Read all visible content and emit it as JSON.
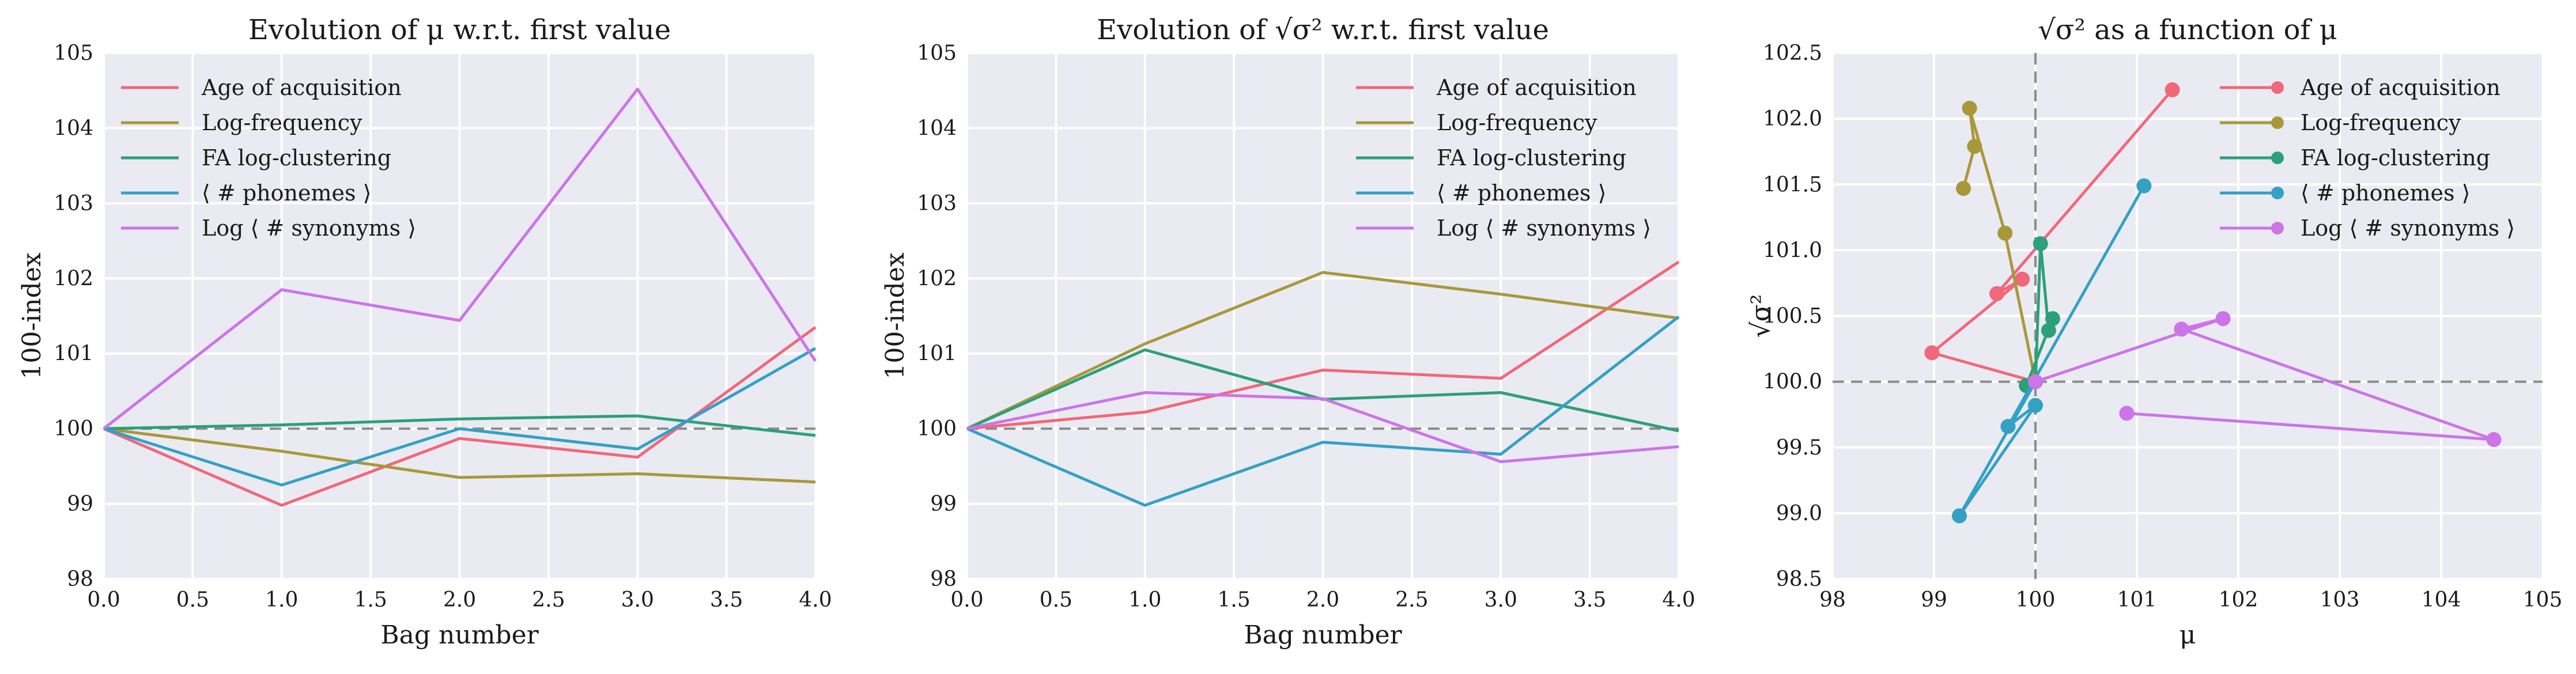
{
  "chart_data": [
    {
      "type": "line",
      "title": "Evolution of μ w.r.t. first value",
      "xlabel": "Bag number",
      "ylabel": "100-index",
      "xlim": [
        0,
        4
      ],
      "ylim": [
        98,
        105
      ],
      "xticks": [
        "0.0",
        "0.5",
        "1.0",
        "1.5",
        "2.0",
        "2.5",
        "3.0",
        "3.5",
        "4.0"
      ],
      "yticks": [
        "98",
        "99",
        "100",
        "101",
        "102",
        "103",
        "104",
        "105"
      ],
      "grid": true,
      "legend_position": "top-left",
      "reference_line": {
        "axis": "y",
        "value": 100
      },
      "x": [
        0,
        1,
        2,
        3,
        4
      ],
      "series": [
        {
          "name": "Age of acquisition",
          "color": "#f0687a",
          "values": [
            100,
            98.98,
            99.87,
            99.62,
            101.35
          ]
        },
        {
          "name": "Log-frequency",
          "color": "#a8983a",
          "values": [
            100,
            99.7,
            99.35,
            99.4,
            99.29
          ]
        },
        {
          "name": "FA log-clustering",
          "color": "#2ca07a",
          "values": [
            100,
            100.05,
            100.13,
            100.17,
            99.91
          ]
        },
        {
          "name": "⟨ # phonemes ⟩",
          "color": "#32a1c4",
          "values": [
            100,
            99.25,
            100.0,
            99.73,
            101.07
          ]
        },
        {
          "name": "Log ⟨ # synonyms ⟩",
          "color": "#cc74e8",
          "values": [
            100,
            101.85,
            101.44,
            104.52,
            100.9
          ]
        }
      ]
    },
    {
      "type": "line",
      "title": "Evolution of √σ² w.r.t. first value",
      "xlabel": "Bag number",
      "ylabel": "100-index",
      "xlim": [
        0,
        4
      ],
      "ylim": [
        98,
        105
      ],
      "xticks": [
        "0.0",
        "0.5",
        "1.0",
        "1.5",
        "2.0",
        "2.5",
        "3.0",
        "3.5",
        "4.0"
      ],
      "yticks": [
        "98",
        "99",
        "100",
        "101",
        "102",
        "103",
        "104",
        "105"
      ],
      "grid": true,
      "legend_position": "top-right",
      "reference_line": {
        "axis": "y",
        "value": 100
      },
      "x": [
        0,
        1,
        2,
        3,
        4
      ],
      "series": [
        {
          "name": "Age of acquisition",
          "color": "#f0687a",
          "values": [
            100,
            100.22,
            100.78,
            100.67,
            102.22
          ]
        },
        {
          "name": "Log-frequency",
          "color": "#a8983a",
          "values": [
            100,
            101.13,
            102.08,
            101.79,
            101.47
          ]
        },
        {
          "name": "FA log-clustering",
          "color": "#2ca07a",
          "values": [
            100,
            101.05,
            100.39,
            100.48,
            99.97
          ]
        },
        {
          "name": "⟨ # phonemes ⟩",
          "color": "#32a1c4",
          "values": [
            100,
            98.98,
            99.82,
            99.66,
            101.49
          ]
        },
        {
          "name": "Log ⟨ # synonyms ⟩",
          "color": "#cc74e8",
          "values": [
            100,
            100.48,
            100.4,
            99.56,
            99.76
          ]
        }
      ]
    },
    {
      "type": "scatter",
      "title": "√σ² as a function of μ",
      "xlabel": "μ",
      "ylabel": "√σ²",
      "xlim": [
        98,
        105
      ],
      "ylim": [
        98.5,
        102.5
      ],
      "xticks": [
        "98",
        "99",
        "100",
        "101",
        "102",
        "103",
        "104",
        "105"
      ],
      "yticks": [
        "98.5",
        "99.0",
        "99.5",
        "100.0",
        "100.5",
        "101.0",
        "101.5",
        "102.0",
        "102.5"
      ],
      "grid": true,
      "legend_position": "top-right",
      "reference_lines": [
        {
          "axis": "x",
          "value": 100
        },
        {
          "axis": "y",
          "value": 100
        }
      ],
      "connected": true,
      "series": [
        {
          "name": "Age of acquisition",
          "color": "#f0687a",
          "x": [
            100,
            98.98,
            99.87,
            99.62,
            101.35
          ],
          "y": [
            100,
            100.22,
            100.78,
            100.67,
            102.22
          ]
        },
        {
          "name": "Log-frequency",
          "color": "#a8983a",
          "x": [
            100,
            99.7,
            99.35,
            99.4,
            99.29
          ],
          "y": [
            100,
            101.13,
            102.08,
            101.79,
            101.47
          ]
        },
        {
          "name": "FA log-clustering",
          "color": "#2ca07a",
          "x": [
            100,
            100.05,
            100.13,
            100.17,
            99.91
          ],
          "y": [
            100,
            101.05,
            100.39,
            100.48,
            99.97
          ]
        },
        {
          "name": "⟨ # phonemes ⟩",
          "color": "#32a1c4",
          "x": [
            100,
            99.25,
            100.0,
            99.73,
            101.07
          ],
          "y": [
            100,
            98.98,
            99.82,
            99.66,
            101.49
          ]
        },
        {
          "name": "Log ⟨ # synonyms ⟩",
          "color": "#cc74e8",
          "x": [
            100,
            101.85,
            101.44,
            104.52,
            100.9
          ],
          "y": [
            100,
            100.48,
            100.4,
            99.56,
            99.76
          ]
        }
      ]
    }
  ]
}
